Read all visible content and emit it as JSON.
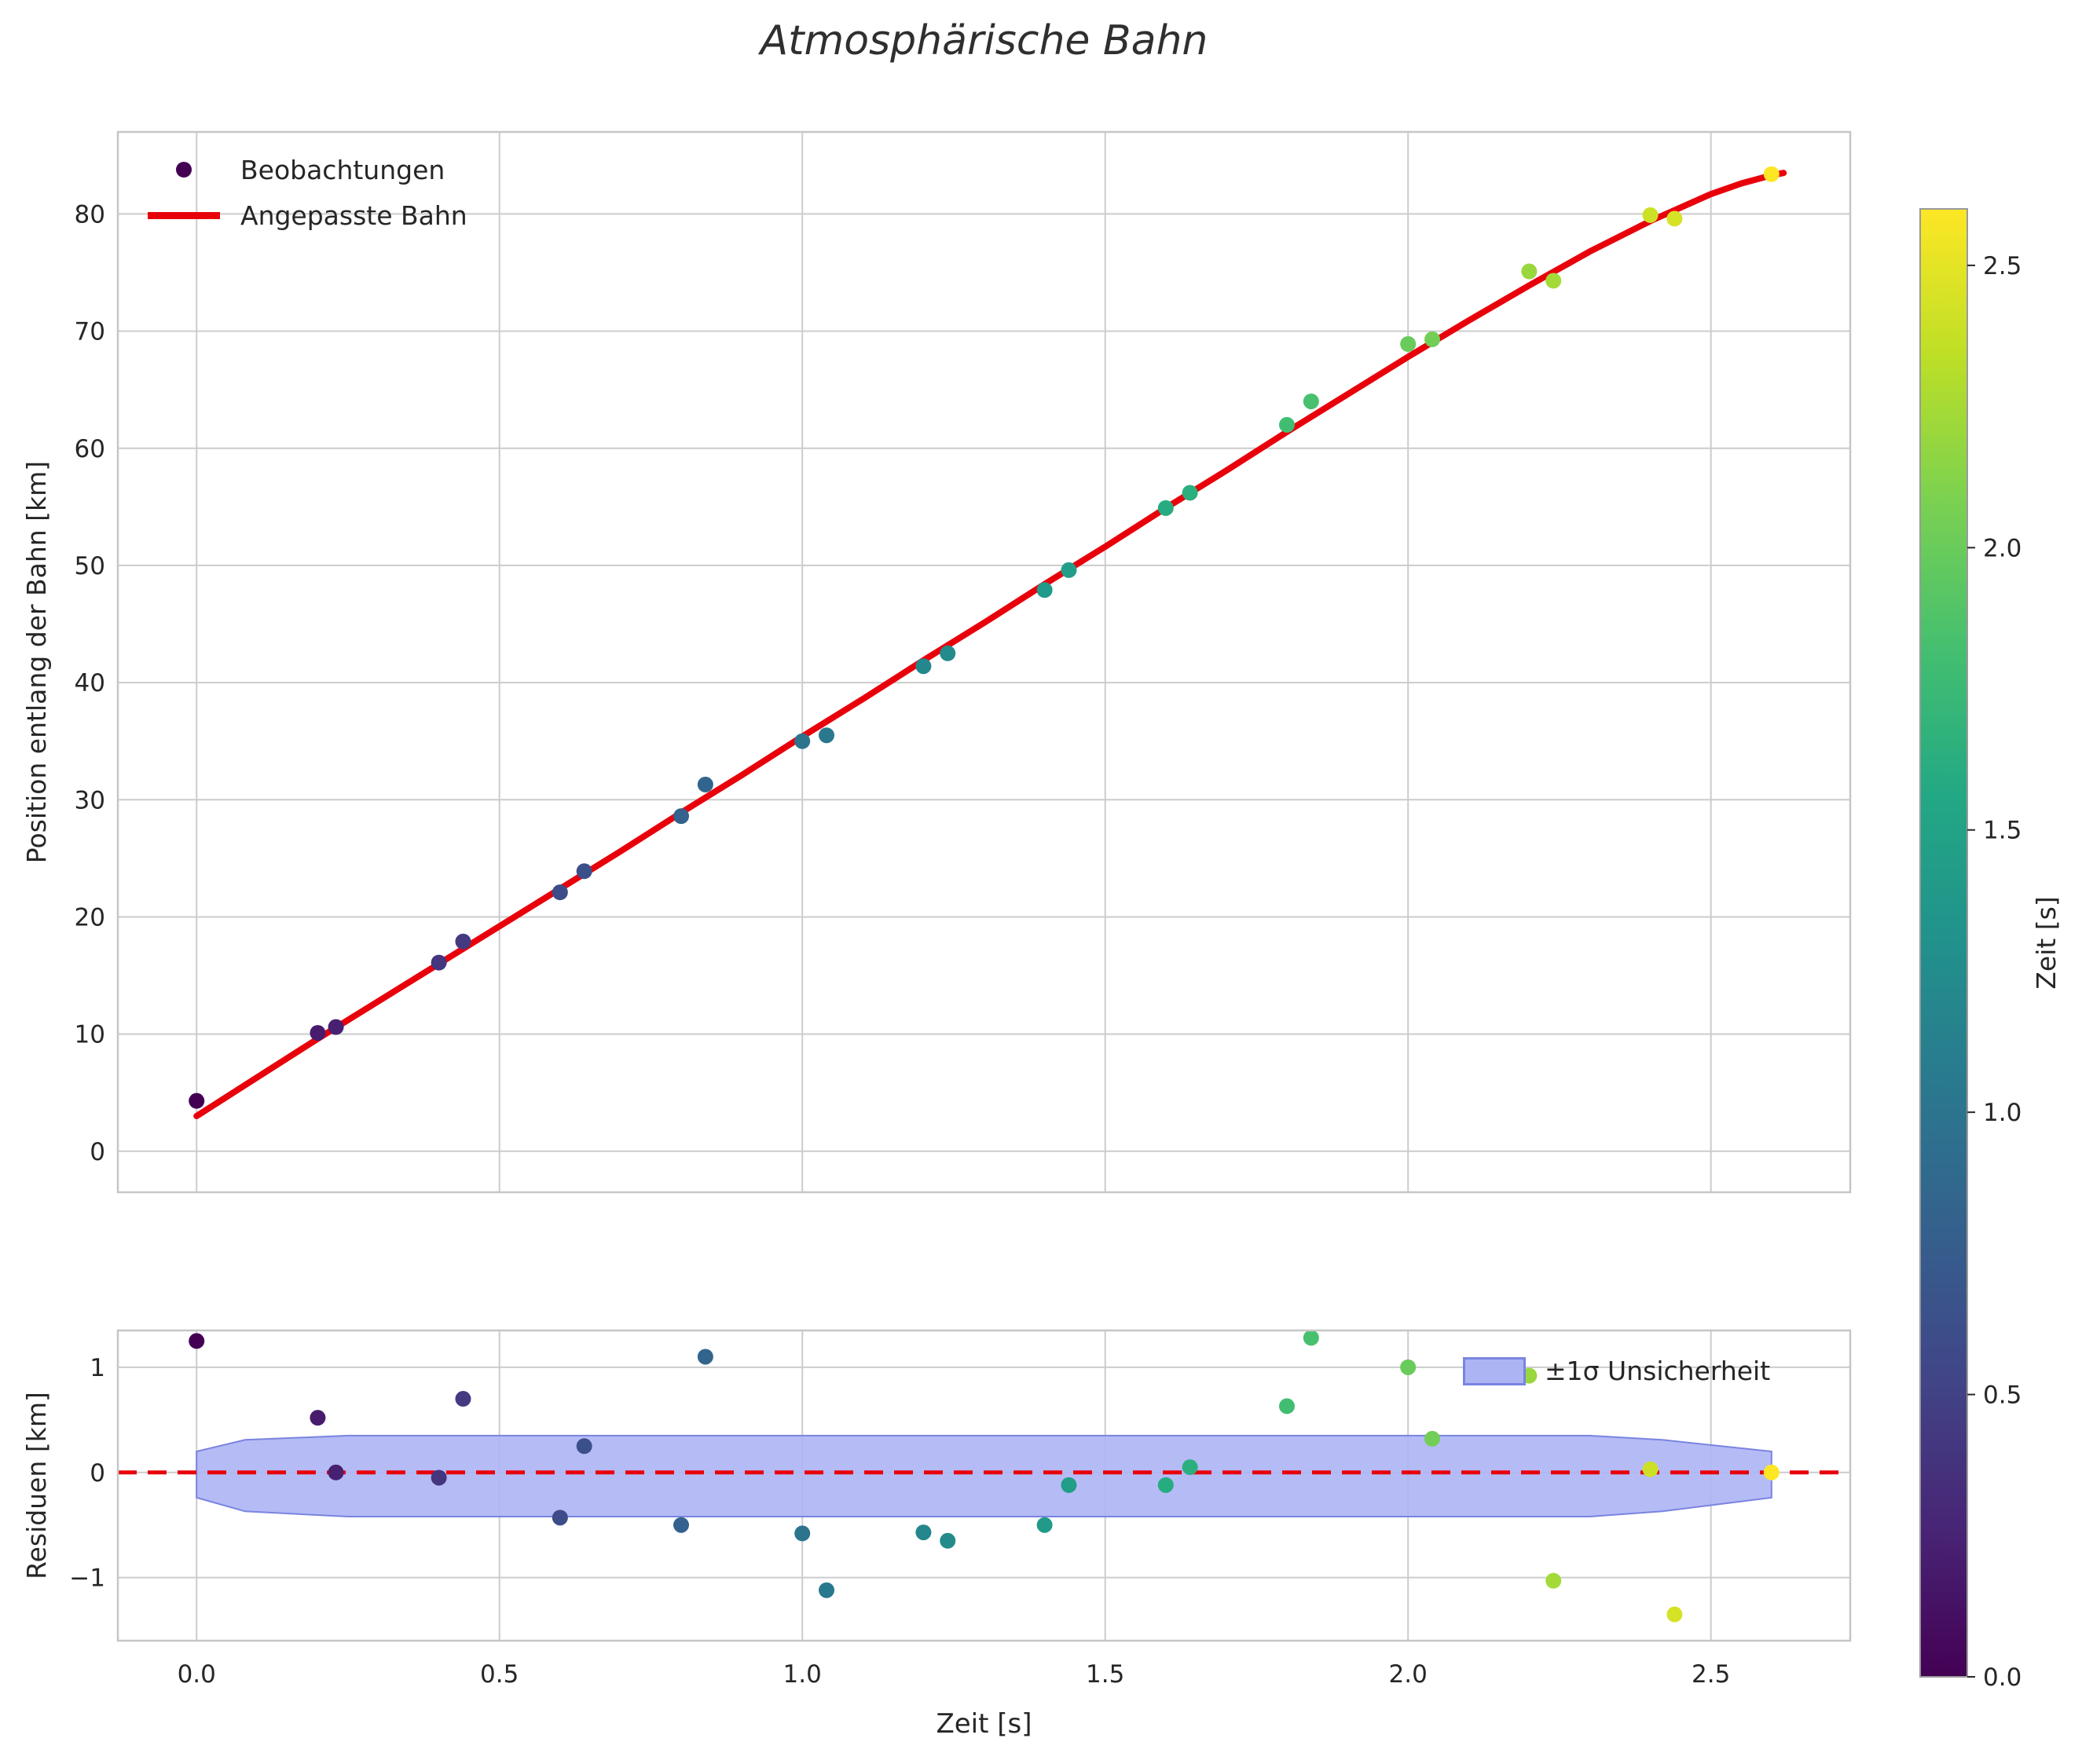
{
  "title": "Atmosphärische Bahn",
  "chart_data": [
    {
      "id": "trajectory",
      "type": "scatter",
      "ylabel": "Position entlang der Bahn [km]",
      "xlim": [
        -0.13,
        2.73
      ],
      "ylim": [
        -3.5,
        87
      ],
      "xticks": [
        0.0,
        0.5,
        1.0,
        1.5,
        2.0,
        2.5
      ],
      "yticks": [
        0,
        10,
        20,
        30,
        40,
        50,
        60,
        70,
        80
      ],
      "grid": true,
      "legend": {
        "position": "upper-left",
        "entries": [
          {
            "marker": "dot",
            "label": "Beobachtungen"
          },
          {
            "marker": "line",
            "label": "Angepasste Bahn"
          }
        ]
      },
      "observations": {
        "t": [
          0.0,
          0.2,
          0.23,
          0.4,
          0.44,
          0.6,
          0.64,
          0.8,
          0.84,
          1.0,
          1.04,
          1.2,
          1.24,
          1.4,
          1.44,
          1.6,
          1.64,
          1.8,
          1.84,
          2.0,
          2.04,
          2.2,
          2.24,
          2.4,
          2.44,
          2.6
        ],
        "position": [
          4.3,
          10.1,
          10.6,
          16.1,
          17.9,
          22.1,
          23.9,
          28.6,
          31.3,
          35.0,
          35.5,
          41.4,
          42.5,
          47.9,
          49.6,
          54.9,
          56.2,
          62.0,
          64.0,
          68.9,
          69.3,
          75.1,
          74.3,
          79.9,
          79.6,
          83.4
        ]
      },
      "fit": {
        "color": "#e8000b",
        "t": [
          0.0,
          0.1,
          0.2,
          0.3,
          0.4,
          0.5,
          0.6,
          0.7,
          0.8,
          0.9,
          1.0,
          1.1,
          1.2,
          1.3,
          1.4,
          1.5,
          1.6,
          1.7,
          1.8,
          1.9,
          2.0,
          2.1,
          2.2,
          2.3,
          2.4,
          2.5,
          2.55,
          2.6,
          2.62
        ],
        "position": [
          3.0,
          6.3,
          9.6,
          12.8,
          16.0,
          19.2,
          22.4,
          25.6,
          28.9,
          32.1,
          35.4,
          38.6,
          41.9,
          45.1,
          48.4,
          51.6,
          54.9,
          58.1,
          61.4,
          64.6,
          67.8,
          70.9,
          73.9,
          76.8,
          79.4,
          81.7,
          82.6,
          83.3,
          83.5
        ]
      }
    },
    {
      "id": "residuals",
      "type": "scatter",
      "ylabel": "Residuen [km]",
      "xlabel": "Zeit [s]",
      "xlim": [
        -0.13,
        2.73
      ],
      "ylim": [
        -1.6,
        1.35
      ],
      "xticks": [
        0.0,
        0.5,
        1.0,
        1.5,
        2.0,
        2.5
      ],
      "yticks": [
        1,
        0,
        -1
      ],
      "grid": true,
      "zero_line": {
        "y": 0,
        "color": "#e8000b",
        "style": "dashed"
      },
      "band": {
        "label": "±1σ Unsicherheit",
        "fill": "#adb4f4",
        "edge": "#7a84e0",
        "x": [
          0.0,
          0.08,
          0.25,
          2.3,
          2.42,
          2.6
        ],
        "upper": [
          0.2,
          0.31,
          0.35,
          0.35,
          0.31,
          0.2
        ],
        "lower": [
          -0.24,
          -0.37,
          -0.42,
          -0.42,
          -0.37,
          -0.24
        ]
      },
      "residuals": {
        "t": [
          0.0,
          0.2,
          0.23,
          0.4,
          0.44,
          0.6,
          0.64,
          0.8,
          0.84,
          1.0,
          1.04,
          1.2,
          1.24,
          1.4,
          1.44,
          1.6,
          1.64,
          1.8,
          1.84,
          2.0,
          2.04,
          2.2,
          2.24,
          2.4,
          2.44,
          2.6
        ],
        "value": [
          1.25,
          0.52,
          0.0,
          -0.05,
          0.7,
          -0.43,
          0.25,
          -0.5,
          1.1,
          -0.58,
          -1.12,
          -0.57,
          -0.65,
          -0.5,
          -0.12,
          -0.12,
          0.05,
          0.63,
          1.28,
          1.0,
          0.32,
          0.92,
          -1.03,
          0.03,
          -1.35,
          0.0
        ]
      }
    }
  ],
  "colorbar": {
    "label": "Zeit [s]",
    "vmin": 0.0,
    "vmax": 2.6,
    "ticks": [
      0.0,
      0.5,
      1.0,
      1.5,
      2.0,
      2.5
    ]
  },
  "colormap": {
    "name": "viridis",
    "stops": [
      [
        0.0,
        "#440154"
      ],
      [
        0.1,
        "#482475"
      ],
      [
        0.2,
        "#414487"
      ],
      [
        0.3,
        "#355f8d"
      ],
      [
        0.4,
        "#2a788e"
      ],
      [
        0.5,
        "#21918c"
      ],
      [
        0.6,
        "#22a884"
      ],
      [
        0.7,
        "#44bf70"
      ],
      [
        0.8,
        "#7ad151"
      ],
      [
        0.9,
        "#bddf26"
      ],
      [
        1.0,
        "#fde725"
      ]
    ]
  },
  "colors": {
    "grid": "#cccccc",
    "spine": "#c6c6c6",
    "tick_text": "#262626",
    "fit_line": "#e8000b"
  }
}
